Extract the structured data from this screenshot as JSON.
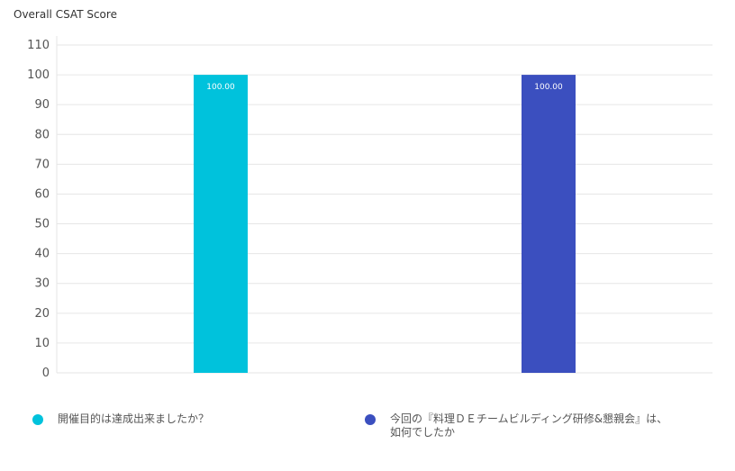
{
  "chart_title": "Overall CSAT Score",
  "colors": {
    "series1": "#00c2dc",
    "series2": "#3b4fbf",
    "grid": "#e6e6e6",
    "tick_text": "#555555",
    "bar_label": "#ffffff"
  },
  "legend": [
    {
      "label": "開催目的は達成出来ましたか？",
      "color": "#00c2dc"
    },
    {
      "label": "今回の『料理ＤＥチームビルディング研修&懇親会』は、如何でしたか",
      "color": "#3b4fbf"
    }
  ],
  "chart_data": {
    "type": "bar",
    "title": "Overall CSAT Score",
    "categories": [
      "開催目的は達成出来ましたか？",
      "今回の『料理ＤＥチームビルディング研修&懇親会』は、如何でしたか"
    ],
    "values": [
      100,
      100
    ],
    "value_labels": [
      "100.00",
      "100.00"
    ],
    "xlabel": "",
    "ylabel": "",
    "ylim": [
      0,
      110
    ],
    "yticks": [
      0,
      10,
      20,
      30,
      40,
      50,
      60,
      70,
      80,
      90,
      100,
      110
    ],
    "grid": true,
    "legend_position": "bottom"
  }
}
